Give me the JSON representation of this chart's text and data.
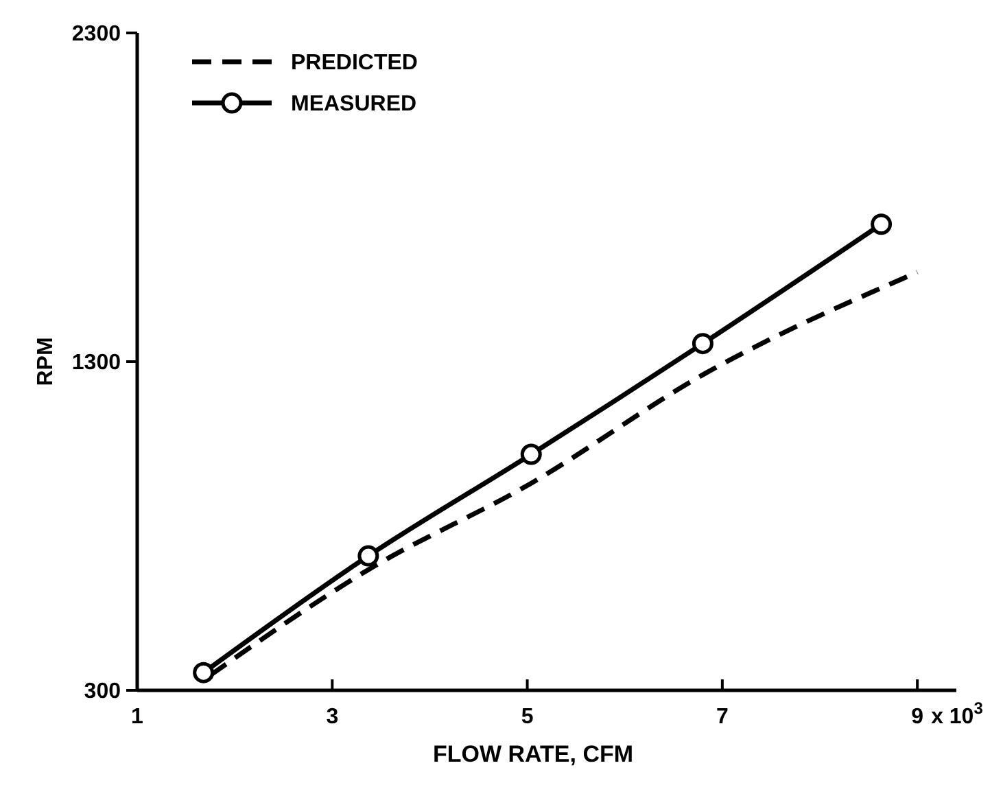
{
  "chart_data": {
    "type": "line",
    "xlabel": "FLOW RATE, CFM",
    "ylabel": "RPM",
    "xlim": [
      1,
      9.4
    ],
    "xticks": [
      1,
      3,
      5,
      7,
      9
    ],
    "annotations": [
      "x 10$^{3}$"
    ],
    "ylim": [
      300,
      2300
    ],
    "yticks": [
      300,
      1300,
      2300
    ],
    "legend": "top left",
    "grid": false,
    "series": [
      {
        "name": "PREDICTED",
        "color": "#000000",
        "line_style": "dashed",
        "marker": "none",
        "x": [
          1.75,
          3.37,
          5.04,
          6.8,
          9.0
        ],
        "values": [
          346,
          667,
          930,
          1260,
          1572
        ]
      },
      {
        "name": "MEASURED",
        "color": "#000000",
        "line_style": "solid",
        "marker": "circle",
        "x": [
          1.68,
          3.37,
          5.04,
          6.8,
          8.63
        ],
        "values": [
          354,
          709,
          1018,
          1355,
          1718
        ]
      }
    ]
  }
}
